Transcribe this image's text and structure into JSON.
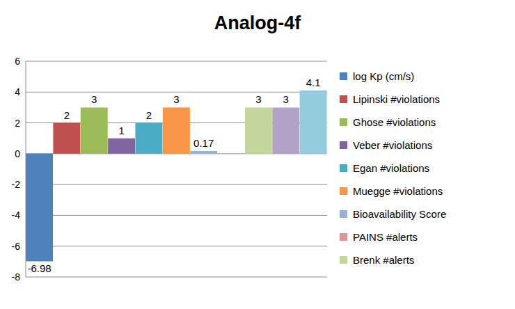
{
  "chart_data": {
    "type": "bar",
    "title": "Analog-4f",
    "categories": [
      "log Kp (cm/s)",
      "Lipinski #violations",
      "Ghose #violations",
      "Veber #violations",
      "Egan #violations",
      "Muegge #violations",
      "Bioavailability Score",
      "PAINS #alerts",
      "Brenk #alerts",
      null,
      null
    ],
    "values": [
      -6.98,
      2,
      3,
      1,
      2,
      3,
      0.17,
      0,
      3,
      3,
      4.1
    ],
    "colors": [
      "#4f81bd",
      "#c0504d",
      "#9bbb59",
      "#8064a2",
      "#4bacc6",
      "#f79646",
      "#95b3d7",
      "#d99694",
      "#c3d69b",
      "#b3a2c7",
      "#93cddd"
    ],
    "ylim": [
      -8,
      6
    ],
    "yticks": [
      -8,
      -6,
      -4,
      -2,
      0,
      2,
      4,
      6
    ],
    "grid": true,
    "legend": "right",
    "data_labels": true,
    "tick_labels": "y"
  }
}
